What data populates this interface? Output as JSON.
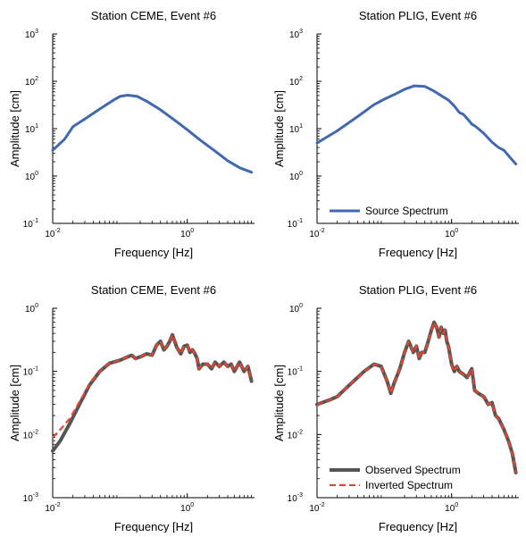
{
  "chart_data": [
    {
      "type": "line",
      "title": "Station CEME, Event #6",
      "xlabel": "Frequency [Hz]",
      "ylabel": "Amplitude [cm]",
      "xscale": "log",
      "yscale": "log",
      "xlim": [
        0.01,
        10
      ],
      "ylim": [
        0.1,
        1000
      ],
      "x_ticks": [
        {
          "v": 0.01,
          "m": "10",
          "e": "-2"
        },
        {
          "v": 1,
          "m": "10",
          "e": "0"
        }
      ],
      "y_ticks": [
        {
          "v": 0.1,
          "m": "10",
          "e": "-1"
        },
        {
          "v": 1,
          "m": "10",
          "e": "0"
        },
        {
          "v": 10,
          "m": "10",
          "e": "1"
        },
        {
          "v": 100,
          "m": "10",
          "e": "2"
        },
        {
          "v": 1000,
          "m": "10",
          "e": "3"
        }
      ],
      "legend": null,
      "series": [
        {
          "color": "#4169b0",
          "width": 3,
          "dash": null,
          "points": [
            [
              0.01,
              3.5
            ],
            [
              0.015,
              6
            ],
            [
              0.02,
              11
            ],
            [
              0.03,
              16
            ],
            [
              0.05,
              26
            ],
            [
              0.08,
              40
            ],
            [
              0.1,
              48
            ],
            [
              0.13,
              51
            ],
            [
              0.18,
              48
            ],
            [
              0.25,
              38
            ],
            [
              0.4,
              25
            ],
            [
              0.7,
              14
            ],
            [
              1,
              9.5
            ],
            [
              1.5,
              6
            ],
            [
              2.5,
              3.5
            ],
            [
              4,
              2.1
            ],
            [
              6,
              1.5
            ],
            [
              9,
              1.2
            ]
          ]
        }
      ]
    },
    {
      "type": "line",
      "title": "Station PLIG, Event #6",
      "xlabel": "Frequency [Hz]",
      "ylabel": "Amplitude [cm]",
      "xscale": "log",
      "yscale": "log",
      "xlim": [
        0.01,
        10
      ],
      "ylim": [
        0.1,
        1000
      ],
      "x_ticks": [
        {
          "v": 0.01,
          "m": "10",
          "e": "-2"
        },
        {
          "v": 1,
          "m": "10",
          "e": "0"
        }
      ],
      "y_ticks": [
        {
          "v": 0.1,
          "m": "10",
          "e": "-1"
        },
        {
          "v": 1,
          "m": "10",
          "e": "0"
        },
        {
          "v": 10,
          "m": "10",
          "e": "1"
        },
        {
          "v": 100,
          "m": "10",
          "e": "2"
        },
        {
          "v": 1000,
          "m": "10",
          "e": "3"
        }
      ],
      "legend": {
        "position": "bottom-left",
        "entries": [
          {
            "label": "Source Spectrum",
            "series": 0
          }
        ]
      },
      "series": [
        {
          "color": "#4169b0",
          "width": 3,
          "dash": null,
          "points": [
            [
              0.01,
              5
            ],
            [
              0.02,
              9
            ],
            [
              0.04,
              18
            ],
            [
              0.07,
              32
            ],
            [
              0.1,
              42
            ],
            [
              0.15,
              55
            ],
            [
              0.2,
              68
            ],
            [
              0.28,
              80
            ],
            [
              0.4,
              78
            ],
            [
              0.55,
              62
            ],
            [
              0.7,
              50
            ],
            [
              0.9,
              40
            ],
            [
              1.1,
              30
            ],
            [
              1.3,
              22
            ],
            [
              1.5,
              20
            ],
            [
              1.8,
              15
            ],
            [
              2,
              12.5
            ],
            [
              2.2,
              11.5
            ],
            [
              2.5,
              10
            ],
            [
              3,
              8
            ],
            [
              4,
              5.2
            ],
            [
              5,
              4
            ],
            [
              6,
              3.5
            ],
            [
              7.5,
              2.4
            ],
            [
              9,
              1.8
            ]
          ]
        }
      ]
    },
    {
      "type": "line",
      "title": "Station CEME, Event #6",
      "xlabel": "Frequency [Hz]",
      "ylabel": "Amplitude [cm]",
      "xscale": "log",
      "yscale": "log",
      "xlim": [
        0.01,
        10
      ],
      "ylim": [
        0.001,
        1
      ],
      "x_ticks": [
        {
          "v": 0.01,
          "m": "10",
          "e": "-2"
        },
        {
          "v": 1,
          "m": "10",
          "e": "0"
        }
      ],
      "y_ticks": [
        {
          "v": 0.001,
          "m": "10",
          "e": "-3"
        },
        {
          "v": 0.01,
          "m": "10",
          "e": "-2"
        },
        {
          "v": 0.1,
          "m": "10",
          "e": "-1"
        },
        {
          "v": 1,
          "m": "10",
          "e": "0"
        }
      ],
      "legend": null,
      "series": [
        {
          "color": "#555555",
          "width": 4,
          "dash": null,
          "points": [
            [
              0.01,
              0.0055
            ],
            [
              0.013,
              0.008
            ],
            [
              0.018,
              0.015
            ],
            [
              0.025,
              0.03
            ],
            [
              0.035,
              0.06
            ],
            [
              0.05,
              0.1
            ],
            [
              0.07,
              0.135
            ],
            [
              0.1,
              0.15
            ],
            [
              0.13,
              0.17
            ],
            [
              0.15,
              0.18
            ],
            [
              0.17,
              0.16
            ],
            [
              0.2,
              0.17
            ],
            [
              0.25,
              0.19
            ],
            [
              0.3,
              0.18
            ],
            [
              0.35,
              0.26
            ],
            [
              0.4,
              0.3
            ],
            [
              0.45,
              0.22
            ],
            [
              0.5,
              0.25
            ],
            [
              0.55,
              0.3
            ],
            [
              0.6,
              0.38
            ],
            [
              0.65,
              0.3
            ],
            [
              0.7,
              0.24
            ],
            [
              0.8,
              0.19
            ],
            [
              0.9,
              0.25
            ],
            [
              1,
              0.26
            ],
            [
              1.1,
              0.2
            ],
            [
              1.2,
              0.22
            ],
            [
              1.3,
              0.19
            ],
            [
              1.4,
              0.16
            ],
            [
              1.5,
              0.11
            ],
            [
              1.7,
              0.13
            ],
            [
              2,
              0.13
            ],
            [
              2.3,
              0.11
            ],
            [
              2.6,
              0.14
            ],
            [
              3,
              0.12
            ],
            [
              3.5,
              0.14
            ],
            [
              4,
              0.12
            ],
            [
              4.5,
              0.13
            ],
            [
              5,
              0.1
            ],
            [
              6,
              0.14
            ],
            [
              7,
              0.1
            ],
            [
              8,
              0.12
            ],
            [
              9,
              0.07
            ]
          ]
        },
        {
          "color": "#e8452c",
          "width": 2.2,
          "dash": "7,4",
          "points": [
            [
              0.01,
              0.009
            ],
            [
              0.013,
              0.012
            ],
            [
              0.018,
              0.018
            ],
            [
              0.025,
              0.033
            ],
            [
              0.035,
              0.062
            ],
            [
              0.05,
              0.1
            ],
            [
              0.07,
              0.135
            ],
            [
              0.1,
              0.15
            ],
            [
              0.13,
              0.17
            ],
            [
              0.15,
              0.18
            ],
            [
              0.17,
              0.16
            ],
            [
              0.2,
              0.17
            ],
            [
              0.25,
              0.19
            ],
            [
              0.3,
              0.18
            ],
            [
              0.35,
              0.26
            ],
            [
              0.4,
              0.3
            ],
            [
              0.45,
              0.22
            ],
            [
              0.5,
              0.25
            ],
            [
              0.55,
              0.3
            ],
            [
              0.6,
              0.38
            ],
            [
              0.65,
              0.3
            ],
            [
              0.7,
              0.24
            ],
            [
              0.8,
              0.19
            ],
            [
              0.9,
              0.25
            ],
            [
              1,
              0.26
            ],
            [
              1.1,
              0.2
            ],
            [
              1.2,
              0.22
            ],
            [
              1.3,
              0.19
            ],
            [
              1.4,
              0.16
            ],
            [
              1.5,
              0.11
            ],
            [
              1.7,
              0.13
            ],
            [
              2,
              0.13
            ],
            [
              2.3,
              0.11
            ],
            [
              2.6,
              0.14
            ],
            [
              3,
              0.12
            ],
            [
              3.5,
              0.14
            ],
            [
              4,
              0.12
            ],
            [
              4.5,
              0.13
            ],
            [
              5,
              0.1
            ],
            [
              6,
              0.14
            ],
            [
              7,
              0.1
            ],
            [
              8,
              0.12
            ],
            [
              9,
              0.07
            ]
          ]
        }
      ]
    },
    {
      "type": "line",
      "title": "Station PLIG, Event #6",
      "xlabel": "Frequency [Hz]",
      "ylabel": "Amplitude [cm]",
      "xscale": "log",
      "yscale": "log",
      "xlim": [
        0.01,
        10
      ],
      "ylim": [
        0.001,
        1
      ],
      "x_ticks": [
        {
          "v": 0.01,
          "m": "10",
          "e": "-2"
        },
        {
          "v": 1,
          "m": "10",
          "e": "0"
        }
      ],
      "y_ticks": [
        {
          "v": 0.001,
          "m": "10",
          "e": "-3"
        },
        {
          "v": 0.01,
          "m": "10",
          "e": "-2"
        },
        {
          "v": 0.1,
          "m": "10",
          "e": "-1"
        },
        {
          "v": 1,
          "m": "10",
          "e": "0"
        }
      ],
      "legend": {
        "position": "bottom-left",
        "entries": [
          {
            "label": "Observed Spectrum",
            "series": 0
          },
          {
            "label": "Inverted Spectrum",
            "series": 1
          }
        ]
      },
      "series": [
        {
          "color": "#555555",
          "width": 4,
          "dash": null,
          "points": [
            [
              0.01,
              0.03
            ],
            [
              0.015,
              0.035
            ],
            [
              0.02,
              0.04
            ],
            [
              0.03,
              0.06
            ],
            [
              0.05,
              0.1
            ],
            [
              0.07,
              0.13
            ],
            [
              0.09,
              0.12
            ],
            [
              0.11,
              0.07
            ],
            [
              0.125,
              0.045
            ],
            [
              0.14,
              0.065
            ],
            [
              0.17,
              0.11
            ],
            [
              0.2,
              0.2
            ],
            [
              0.23,
              0.3
            ],
            [
              0.27,
              0.2
            ],
            [
              0.3,
              0.25
            ],
            [
              0.33,
              0.16
            ],
            [
              0.36,
              0.2
            ],
            [
              0.4,
              0.2
            ],
            [
              0.45,
              0.3
            ],
            [
              0.5,
              0.45
            ],
            [
              0.55,
              0.6
            ],
            [
              0.6,
              0.5
            ],
            [
              0.65,
              0.35
            ],
            [
              0.7,
              0.5
            ],
            [
              0.75,
              0.4
            ],
            [
              0.8,
              0.45
            ],
            [
              0.85,
              0.3
            ],
            [
              0.9,
              0.25
            ],
            [
              1,
              0.13
            ],
            [
              1.1,
              0.1
            ],
            [
              1.2,
              0.12
            ],
            [
              1.3,
              0.1
            ],
            [
              1.5,
              0.09
            ],
            [
              1.7,
              0.08
            ],
            [
              2,
              0.11
            ],
            [
              2.2,
              0.05
            ],
            [
              2.5,
              0.045
            ],
            [
              3,
              0.04
            ],
            [
              3.5,
              0.03
            ],
            [
              4,
              0.032
            ],
            [
              4.5,
              0.02
            ],
            [
              5,
              0.018
            ],
            [
              6,
              0.012
            ],
            [
              7,
              0.008
            ],
            [
              8,
              0.005
            ],
            [
              9,
              0.0025
            ]
          ]
        },
        {
          "color": "#e8452c",
          "width": 2.2,
          "dash": "7,4",
          "points": [
            [
              0.01,
              0.03
            ],
            [
              0.015,
              0.035
            ],
            [
              0.02,
              0.04
            ],
            [
              0.03,
              0.06
            ],
            [
              0.05,
              0.1
            ],
            [
              0.07,
              0.13
            ],
            [
              0.09,
              0.12
            ],
            [
              0.11,
              0.07
            ],
            [
              0.125,
              0.045
            ],
            [
              0.14,
              0.065
            ],
            [
              0.17,
              0.11
            ],
            [
              0.2,
              0.2
            ],
            [
              0.23,
              0.3
            ],
            [
              0.27,
              0.2
            ],
            [
              0.3,
              0.25
            ],
            [
              0.33,
              0.16
            ],
            [
              0.36,
              0.2
            ],
            [
              0.4,
              0.2
            ],
            [
              0.45,
              0.3
            ],
            [
              0.5,
              0.45
            ],
            [
              0.55,
              0.6
            ],
            [
              0.6,
              0.5
            ],
            [
              0.65,
              0.35
            ],
            [
              0.7,
              0.5
            ],
            [
              0.75,
              0.4
            ],
            [
              0.8,
              0.45
            ],
            [
              0.85,
              0.3
            ],
            [
              0.9,
              0.25
            ],
            [
              1,
              0.13
            ],
            [
              1.1,
              0.1
            ],
            [
              1.2,
              0.12
            ],
            [
              1.3,
              0.1
            ],
            [
              1.5,
              0.09
            ],
            [
              1.7,
              0.08
            ],
            [
              2,
              0.11
            ],
            [
              2.2,
              0.05
            ],
            [
              2.5,
              0.045
            ],
            [
              3,
              0.04
            ],
            [
              3.5,
              0.03
            ],
            [
              4,
              0.032
            ],
            [
              4.5,
              0.02
            ],
            [
              5,
              0.018
            ],
            [
              6,
              0.012
            ],
            [
              7,
              0.008
            ],
            [
              8,
              0.005
            ],
            [
              9,
              0.0025
            ]
          ]
        }
      ]
    }
  ]
}
